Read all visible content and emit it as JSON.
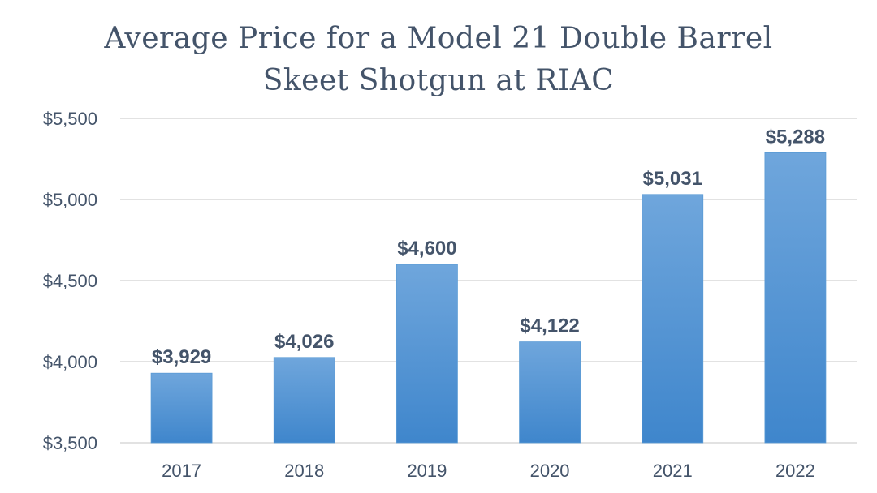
{
  "chart_data": {
    "type": "bar",
    "title_lines": [
      "Average Price for a Model 21 Double Barrel",
      "Skeet Shotgun at RIAC"
    ],
    "categories": [
      "2017",
      "2018",
      "2019",
      "2020",
      "2021",
      "2022"
    ],
    "values": [
      3929,
      4026,
      4600,
      4122,
      5031,
      5288
    ],
    "data_labels": [
      "$3,929",
      "$4,026",
      "$4,600",
      "$4,122",
      "$5,031",
      "$5,288"
    ],
    "ylim": [
      3500,
      5500
    ],
    "yticks": [
      3500,
      4000,
      4500,
      5000,
      5500
    ],
    "ytick_labels": [
      "$3,500",
      "$4,000",
      "$4,500",
      "$5,000",
      "$5,500"
    ],
    "grid": true,
    "legend": "none",
    "colors": {
      "bar_top": "#6fa6dc",
      "bar_bottom": "#3f86cc",
      "text": "#44546a",
      "grid": "#d9d9d9"
    }
  }
}
